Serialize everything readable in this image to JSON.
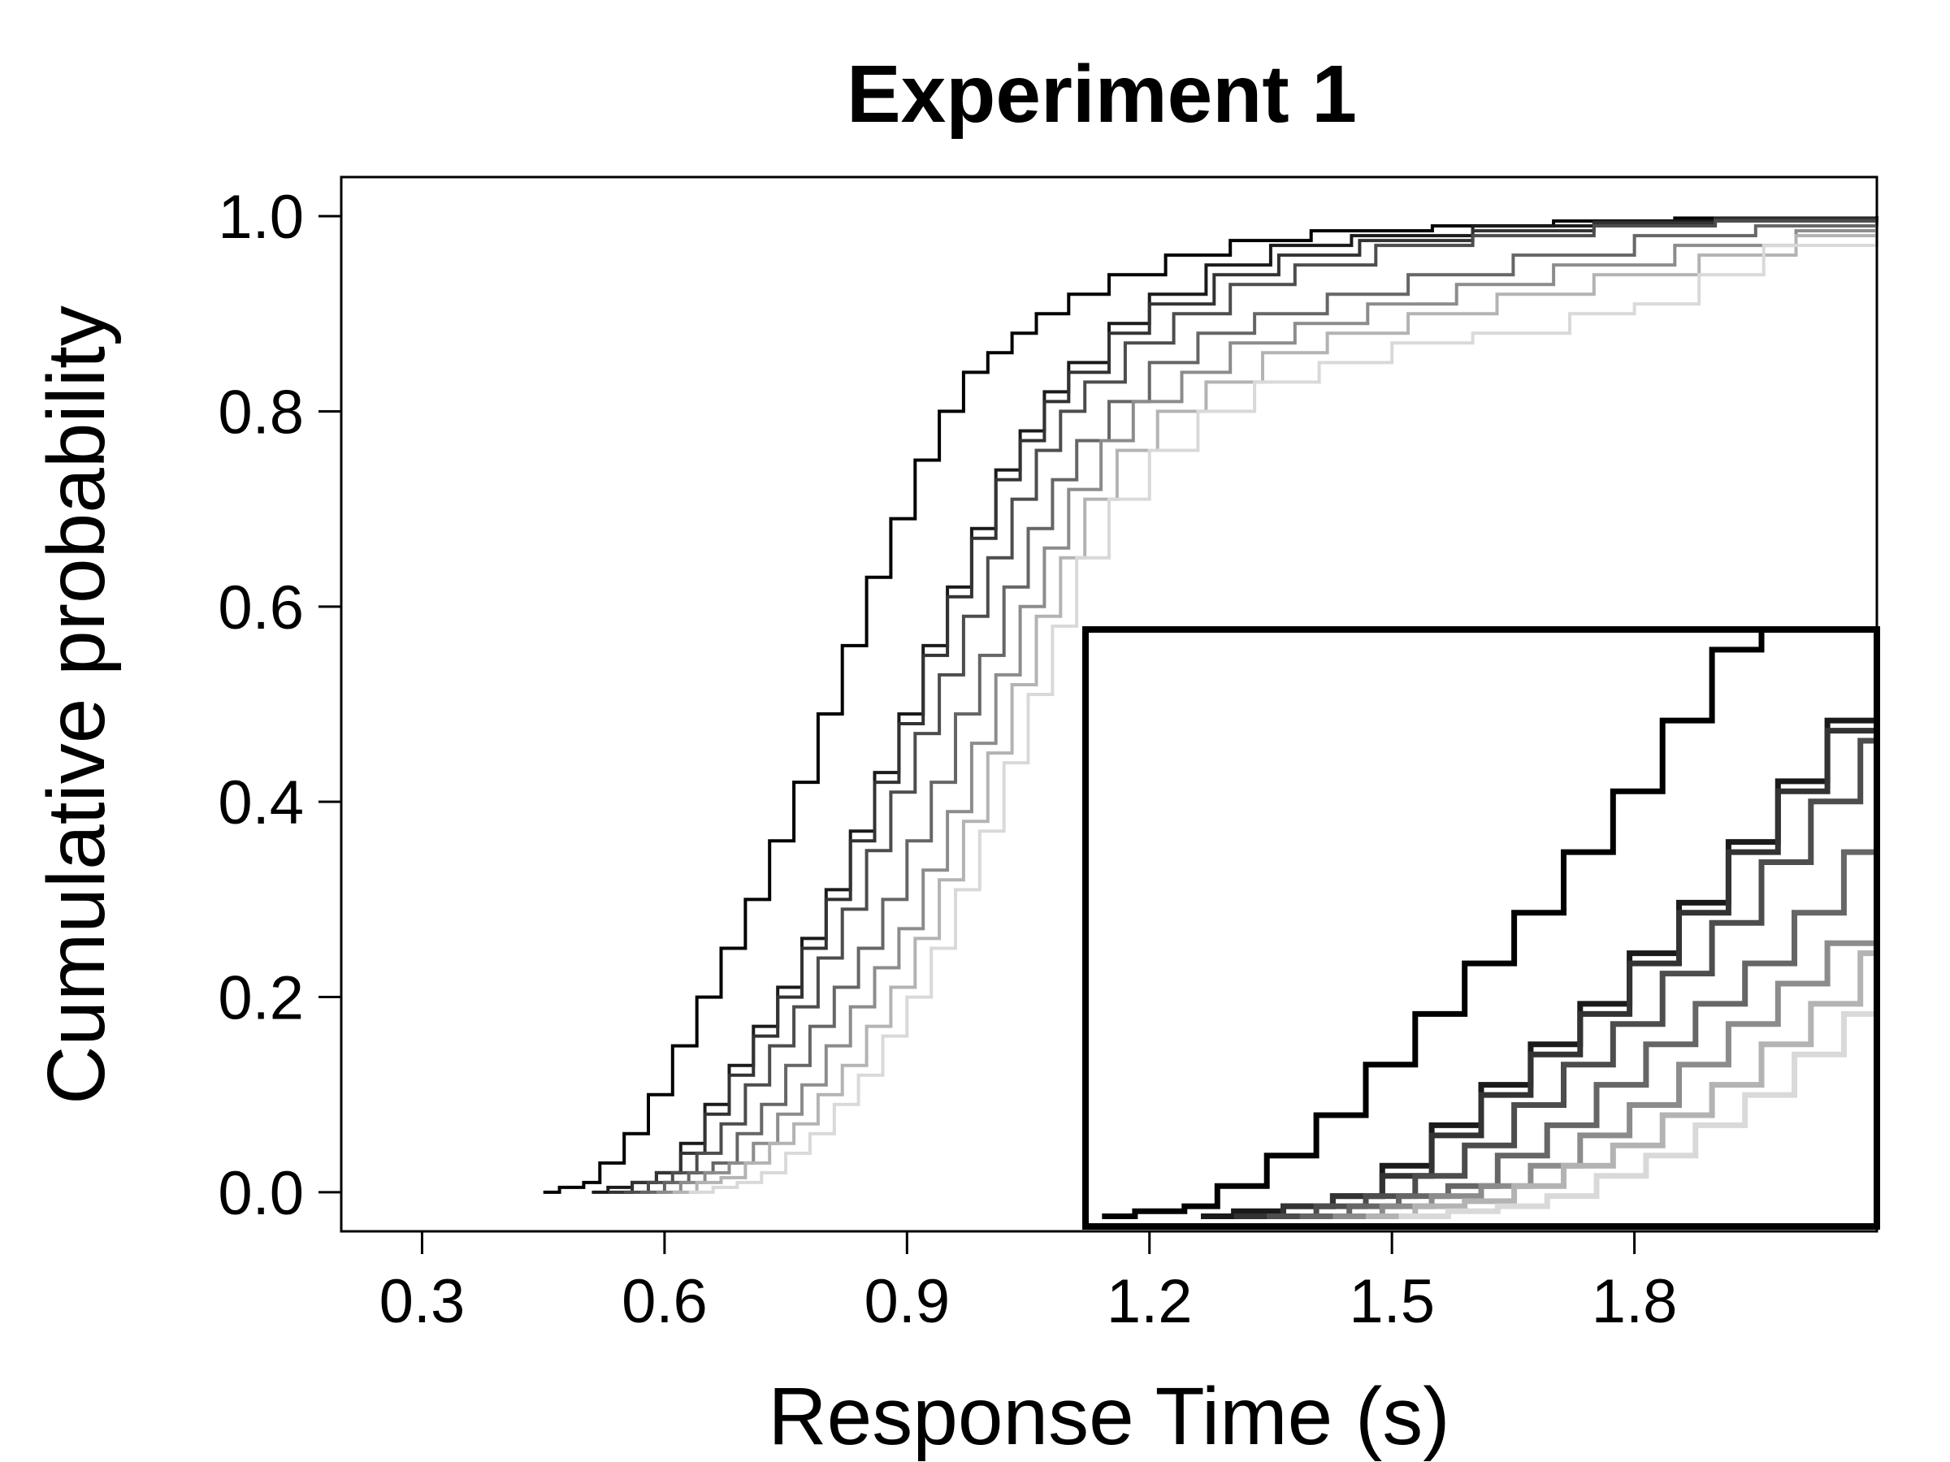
{
  "chart_data": {
    "type": "line",
    "title": "Experiment 1",
    "xlabel": "Response Time (s)",
    "ylabel": "Cumulative probability",
    "xlim": [
      0.2,
      2.1
    ],
    "ylim": [
      -0.04,
      1.04
    ],
    "xticks": [
      0.3,
      0.6,
      0.9,
      1.2,
      1.5,
      1.8
    ],
    "xtick_labels": [
      "0.3",
      "0.6",
      "0.9",
      "1.2",
      "1.5",
      "1.8"
    ],
    "yticks": [
      0.0,
      0.2,
      0.4,
      0.6,
      0.8,
      1.0
    ],
    "ytick_labels": [
      "0.0",
      "0.2",
      "0.4",
      "0.6",
      "0.8",
      "1.0"
    ],
    "grid": false,
    "legend": "none",
    "inset": {
      "description_free": true,
      "xlim": [
        0.44,
        0.92
      ],
      "ylim": [
        -0.01,
        0.58
      ],
      "ticks": false
    },
    "series": [
      {
        "color": "#000000",
        "x": [
          0.45,
          0.47,
          0.5,
          0.52,
          0.55,
          0.58,
          0.61,
          0.64,
          0.67,
          0.7,
          0.73,
          0.76,
          0.79,
          0.82,
          0.85,
          0.88,
          0.91,
          0.94,
          0.97,
          1.0,
          1.03,
          1.06,
          1.1,
          1.15,
          1.22,
          1.3,
          1.4,
          1.55,
          1.7,
          1.85,
          2.1
        ],
        "y": [
          0.0,
          0.005,
          0.01,
          0.03,
          0.06,
          0.1,
          0.15,
          0.2,
          0.25,
          0.3,
          0.36,
          0.42,
          0.49,
          0.56,
          0.63,
          0.69,
          0.75,
          0.8,
          0.84,
          0.86,
          0.88,
          0.9,
          0.92,
          0.94,
          0.96,
          0.975,
          0.985,
          0.99,
          0.995,
          0.998,
          1.0
        ]
      },
      {
        "color": "#1a1a1a",
        "x": [
          0.51,
          0.53,
          0.56,
          0.59,
          0.62,
          0.65,
          0.68,
          0.71,
          0.74,
          0.77,
          0.8,
          0.83,
          0.86,
          0.89,
          0.92,
          0.95,
          0.98,
          1.01,
          1.04,
          1.07,
          1.1,
          1.15,
          1.2,
          1.27,
          1.35,
          1.45,
          1.6,
          1.75,
          1.9,
          2.1
        ],
        "y": [
          0.0,
          0.005,
          0.01,
          0.02,
          0.05,
          0.09,
          0.13,
          0.17,
          0.21,
          0.26,
          0.31,
          0.37,
          0.43,
          0.49,
          0.56,
          0.62,
          0.68,
          0.74,
          0.78,
          0.82,
          0.85,
          0.89,
          0.92,
          0.95,
          0.97,
          0.98,
          0.99,
          0.995,
          0.998,
          1.0
        ]
      },
      {
        "color": "#333333",
        "x": [
          0.53,
          0.56,
          0.59,
          0.62,
          0.65,
          0.68,
          0.71,
          0.74,
          0.77,
          0.8,
          0.83,
          0.86,
          0.89,
          0.92,
          0.95,
          0.98,
          1.01,
          1.04,
          1.07,
          1.1,
          1.15,
          1.2,
          1.28,
          1.36,
          1.46,
          1.6,
          1.75,
          1.9,
          2.1
        ],
        "y": [
          0.0,
          0.01,
          0.02,
          0.04,
          0.08,
          0.12,
          0.16,
          0.2,
          0.25,
          0.3,
          0.36,
          0.42,
          0.48,
          0.55,
          0.61,
          0.67,
          0.73,
          0.77,
          0.81,
          0.84,
          0.88,
          0.91,
          0.94,
          0.96,
          0.975,
          0.985,
          0.993,
          0.997,
          1.0
        ]
      },
      {
        "color": "#4d4d4d",
        "x": [
          0.55,
          0.58,
          0.61,
          0.64,
          0.67,
          0.7,
          0.73,
          0.76,
          0.79,
          0.82,
          0.85,
          0.88,
          0.91,
          0.94,
          0.97,
          1.0,
          1.03,
          1.06,
          1.09,
          1.12,
          1.17,
          1.23,
          1.3,
          1.38,
          1.48,
          1.6,
          1.75,
          1.9,
          2.1
        ],
        "y": [
          0.0,
          0.01,
          0.02,
          0.04,
          0.07,
          0.11,
          0.15,
          0.19,
          0.24,
          0.29,
          0.35,
          0.41,
          0.47,
          0.53,
          0.59,
          0.65,
          0.71,
          0.76,
          0.8,
          0.83,
          0.87,
          0.9,
          0.93,
          0.95,
          0.97,
          0.98,
          0.99,
          0.995,
          0.997
        ]
      },
      {
        "color": "#666666",
        "x": [
          0.57,
          0.6,
          0.63,
          0.66,
          0.69,
          0.72,
          0.75,
          0.78,
          0.81,
          0.84,
          0.87,
          0.9,
          0.93,
          0.96,
          0.99,
          1.02,
          1.05,
          1.08,
          1.11,
          1.15,
          1.2,
          1.26,
          1.33,
          1.42,
          1.52,
          1.65,
          1.8,
          1.95,
          2.1
        ],
        "y": [
          0.0,
          0.01,
          0.02,
          0.03,
          0.06,
          0.09,
          0.13,
          0.17,
          0.21,
          0.25,
          0.3,
          0.36,
          0.42,
          0.49,
          0.55,
          0.62,
          0.68,
          0.73,
          0.77,
          0.81,
          0.85,
          0.88,
          0.9,
          0.92,
          0.94,
          0.96,
          0.98,
          0.99,
          0.995
        ]
      },
      {
        "color": "#8c8c8c",
        "x": [
          0.59,
          0.62,
          0.65,
          0.68,
          0.71,
          0.74,
          0.77,
          0.8,
          0.83,
          0.86,
          0.89,
          0.92,
          0.95,
          0.98,
          1.01,
          1.04,
          1.07,
          1.1,
          1.14,
          1.18,
          1.24,
          1.3,
          1.38,
          1.47,
          1.58,
          1.7,
          1.85,
          2.0,
          2.1
        ],
        "y": [
          0.0,
          0.01,
          0.02,
          0.03,
          0.05,
          0.08,
          0.11,
          0.15,
          0.19,
          0.23,
          0.27,
          0.33,
          0.39,
          0.46,
          0.53,
          0.6,
          0.66,
          0.72,
          0.77,
          0.81,
          0.84,
          0.87,
          0.89,
          0.91,
          0.93,
          0.95,
          0.97,
          0.985,
          0.993
        ]
      },
      {
        "color": "#b3b3b3",
        "x": [
          0.61,
          0.64,
          0.67,
          0.7,
          0.73,
          0.76,
          0.79,
          0.82,
          0.85,
          0.88,
          0.91,
          0.94,
          0.97,
          1.0,
          1.03,
          1.06,
          1.09,
          1.12,
          1.16,
          1.21,
          1.27,
          1.34,
          1.42,
          1.52,
          1.63,
          1.75,
          1.88,
          2.0,
          2.1
        ],
        "y": [
          0.0,
          0.01,
          0.015,
          0.03,
          0.05,
          0.07,
          0.1,
          0.13,
          0.17,
          0.21,
          0.26,
          0.32,
          0.38,
          0.45,
          0.52,
          0.59,
          0.65,
          0.71,
          0.76,
          0.8,
          0.83,
          0.86,
          0.88,
          0.9,
          0.92,
          0.94,
          0.96,
          0.98,
          0.99
        ]
      },
      {
        "color": "#d9d9d9",
        "x": [
          0.63,
          0.66,
          0.69,
          0.72,
          0.75,
          0.78,
          0.81,
          0.84,
          0.87,
          0.9,
          0.93,
          0.96,
          0.99,
          1.02,
          1.05,
          1.08,
          1.11,
          1.15,
          1.2,
          1.26,
          1.33,
          1.41,
          1.5,
          1.6,
          1.72,
          1.8,
          1.88,
          1.96,
          2.1
        ],
        "y": [
          0.0,
          0.005,
          0.01,
          0.02,
          0.04,
          0.06,
          0.09,
          0.12,
          0.16,
          0.2,
          0.25,
          0.31,
          0.37,
          0.44,
          0.51,
          0.58,
          0.65,
          0.71,
          0.76,
          0.8,
          0.83,
          0.85,
          0.87,
          0.88,
          0.9,
          0.91,
          0.94,
          0.97,
          0.99
        ]
      }
    ]
  }
}
